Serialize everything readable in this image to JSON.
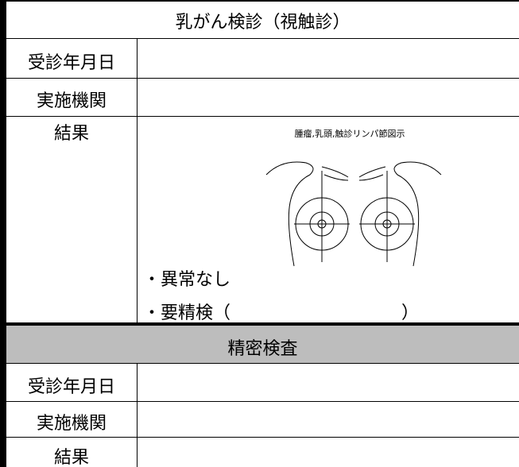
{
  "section1": {
    "title": "乳がん検診（視触診）",
    "rows": [
      {
        "label": "受診年月日"
      },
      {
        "label": "実施機関"
      },
      {
        "label": "結果"
      }
    ],
    "diagram_caption": "腫瘤,乳頭,触診リンパ節図示",
    "options": [
      "・異常なし",
      "・要精検（",
      "）"
    ]
  },
  "section2": {
    "title": "精密検査",
    "rows": [
      {
        "label": "受診年月日"
      },
      {
        "label": "実施機関"
      },
      {
        "label": "結果"
      }
    ]
  }
}
